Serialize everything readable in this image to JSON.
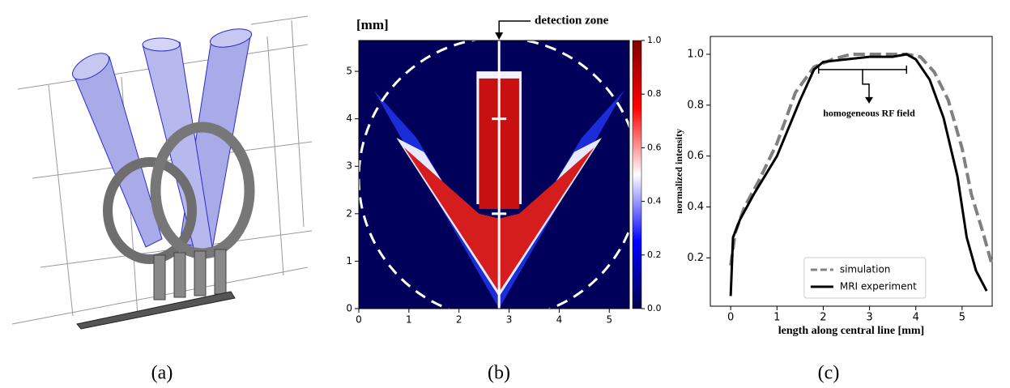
{
  "captions": [
    "(a)",
    "(b)",
    "(c)"
  ],
  "chart_data": [
    {
      "type": "heatmap",
      "ylabel": "[mm]",
      "annotation": "detection zone",
      "xlim": [
        0,
        5.4
      ],
      "xticks": [
        0,
        1,
        2,
        3,
        4,
        5
      ],
      "ylim": [
        0,
        5.65
      ],
      "yticks": [
        0,
        1,
        2,
        3,
        4,
        5
      ],
      "clim": [
        0,
        1
      ],
      "cticks": [
        {
          "value": 0,
          "label": "0.0"
        },
        0.2,
        0.4,
        0.6,
        0.8,
        {
          "value": 1,
          "label": "1.0"
        }
      ]
    },
    {
      "type": "line",
      "xlabel": "length along central line [mm]",
      "ylabel": "normalized intensity",
      "annotation": "homogeneous RF field",
      "xlim": [
        -0.44,
        5.65
      ],
      "xticks": [
        0,
        1,
        2,
        3,
        4,
        5
      ],
      "ylim": [
        0.01,
        1.07
      ],
      "yticks": [
        0.2,
        0.4,
        0.6,
        0.8,
        {
          "value": 1,
          "label": "1.0"
        }
      ],
      "legend": "lower center",
      "series": [
        {
          "name": "simulation",
          "color": "#808080",
          "dashed": true,
          "x": [
            0,
            0.1,
            0.3,
            0.6,
            1,
            1.4,
            1.8,
            2.2,
            2.6,
            3,
            3.4,
            3.8,
            4.1,
            4.4,
            4.7,
            5,
            5.2,
            5.45,
            5.65
          ],
          "values": [
            0.17,
            0.3,
            0.4,
            0.5,
            0.65,
            0.85,
            0.95,
            0.98,
            1.0,
            1.0,
            1.0,
            1.0,
            0.99,
            0.93,
            0.82,
            0.63,
            0.45,
            0.3,
            0.17
          ]
        },
        {
          "name": "MRI experiment",
          "color": "#000000",
          "dashed": false,
          "x": [
            0,
            0.05,
            0.2,
            0.5,
            1,
            1.5,
            1.8,
            2,
            2.5,
            3,
            3.5,
            3.8,
            4,
            4.3,
            4.6,
            4.9,
            5.1,
            5.3,
            5.53
          ],
          "values": [
            0.05,
            0.28,
            0.35,
            0.45,
            0.6,
            0.82,
            0.94,
            0.97,
            0.98,
            0.99,
            0.99,
            1.0,
            0.98,
            0.9,
            0.75,
            0.52,
            0.28,
            0.15,
            0.07
          ]
        }
      ]
    }
  ]
}
